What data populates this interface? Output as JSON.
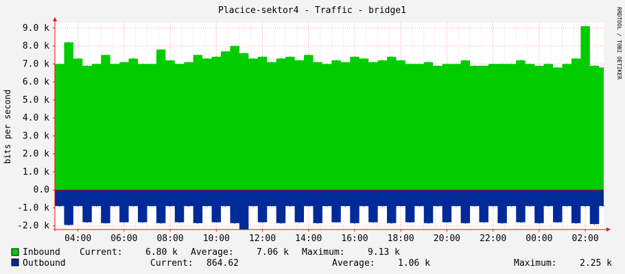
{
  "chart_data": {
    "type": "area",
    "title": "Placice-sektor4 - Traffic - bridge1",
    "ylabel": "bits per second",
    "watermark": "RRDTOOL / TOBI OETIKER",
    "ylim": [
      -2200,
      9300
    ],
    "yticks": [
      {
        "value": 9000,
        "label": "9.0 k"
      },
      {
        "value": 8000,
        "label": "8.0 k"
      },
      {
        "value": 7000,
        "label": "7.0 k"
      },
      {
        "value": 6000,
        "label": "6.0 k"
      },
      {
        "value": 5000,
        "label": "5.0 k"
      },
      {
        "value": 4000,
        "label": "4.0 k"
      },
      {
        "value": 3000,
        "label": "3.0 k"
      },
      {
        "value": 2000,
        "label": "2.0 k"
      },
      {
        "value": 1000,
        "label": "1.0 k"
      },
      {
        "value": 0,
        "label": "0.0"
      },
      {
        "value": -1000,
        "label": "-1.0 k"
      },
      {
        "value": -2000,
        "label": "-2.0 k"
      }
    ],
    "xlim": [
      3.0,
      26.8
    ],
    "xticks": [
      {
        "value": 4,
        "label": "04:00"
      },
      {
        "value": 6,
        "label": "06:00"
      },
      {
        "value": 8,
        "label": "08:00"
      },
      {
        "value": 10,
        "label": "10:00"
      },
      {
        "value": 12,
        "label": "12:00"
      },
      {
        "value": 14,
        "label": "14:00"
      },
      {
        "value": 16,
        "label": "16:00"
      },
      {
        "value": 18,
        "label": "18:00"
      },
      {
        "value": 20,
        "label": "20:00"
      },
      {
        "value": 22,
        "label": "22:00"
      },
      {
        "value": 24,
        "label": "00:00"
      },
      {
        "value": 26,
        "label": "02:00"
      }
    ],
    "grid": true,
    "legend_position": "bottom",
    "series": [
      {
        "name": "Inbound",
        "color": "#00cc00",
        "current": "6.80 k",
        "average": "7.06 k",
        "maximum": "9.13 k",
        "x": [
          3.0,
          3.4,
          3.8,
          4.2,
          4.6,
          5.0,
          5.4,
          5.8,
          6.2,
          6.6,
          7.0,
          7.4,
          7.8,
          8.2,
          8.6,
          9.0,
          9.4,
          9.8,
          10.2,
          10.6,
          11.0,
          11.4,
          11.8,
          12.2,
          12.6,
          13.0,
          13.4,
          13.8,
          14.2,
          14.6,
          15.0,
          15.4,
          15.8,
          16.2,
          16.6,
          17.0,
          17.4,
          17.8,
          18.2,
          18.6,
          19.0,
          19.4,
          19.8,
          20.2,
          20.6,
          21.0,
          21.4,
          21.8,
          22.2,
          22.6,
          23.0,
          23.4,
          23.8,
          24.2,
          24.6,
          25.0,
          25.4,
          25.8,
          26.2,
          26.6
        ],
        "values": [
          7000,
          8200,
          7300,
          6900,
          7000,
          7500,
          7000,
          7100,
          7300,
          7000,
          7000,
          7800,
          7200,
          7000,
          7100,
          7500,
          7300,
          7400,
          7700,
          8000,
          7600,
          7300,
          7400,
          7100,
          7300,
          7400,
          7200,
          7500,
          7100,
          7000,
          7200,
          7100,
          7400,
          7300,
          7100,
          7200,
          7400,
          7200,
          7000,
          7000,
          7100,
          6900,
          7000,
          7000,
          7200,
          6900,
          6900,
          7000,
          7000,
          7000,
          7200,
          7000,
          6900,
          7000,
          6800,
          7000,
          7300,
          9100,
          6900,
          6800
        ]
      },
      {
        "name": "Outbound",
        "color": "#002a97",
        "current": "864.62",
        "average": "1.06 k",
        "maximum": "2.25 k",
        "x": [
          3.0,
          3.4,
          3.8,
          4.2,
          4.6,
          5.0,
          5.4,
          5.8,
          6.2,
          6.6,
          7.0,
          7.4,
          7.8,
          8.2,
          8.6,
          9.0,
          9.4,
          9.8,
          10.2,
          10.6,
          11.0,
          11.4,
          11.8,
          12.2,
          12.6,
          13.0,
          13.4,
          13.8,
          14.2,
          14.6,
          15.0,
          15.4,
          15.8,
          16.2,
          16.6,
          17.0,
          17.4,
          17.8,
          18.2,
          18.6,
          19.0,
          19.4,
          19.8,
          20.2,
          20.6,
          21.0,
          21.4,
          21.8,
          22.2,
          22.6,
          23.0,
          23.4,
          23.8,
          24.2,
          24.6,
          25.0,
          25.4,
          25.8,
          26.2,
          26.6
        ],
        "values": [
          -900,
          -1950,
          -900,
          -1800,
          -900,
          -1850,
          -900,
          -1800,
          -900,
          -1800,
          -900,
          -1850,
          -900,
          -1800,
          -900,
          -1850,
          -900,
          -1800,
          -900,
          -1850,
          -2200,
          -900,
          -1800,
          -900,
          -1850,
          -900,
          -1800,
          -900,
          -1850,
          -900,
          -1800,
          -900,
          -1850,
          -900,
          -1800,
          -900,
          -1850,
          -900,
          -1800,
          -900,
          -1850,
          -900,
          -1800,
          -900,
          -1850,
          -900,
          -1800,
          -900,
          -1850,
          -900,
          -1800,
          -900,
          -1850,
          -900,
          -1800,
          -900,
          -1850,
          -900,
          -1900,
          -900
        ]
      }
    ],
    "legend_labels": {
      "current": "Current:",
      "average": "Average:",
      "maximum": "Maximum:"
    }
  }
}
